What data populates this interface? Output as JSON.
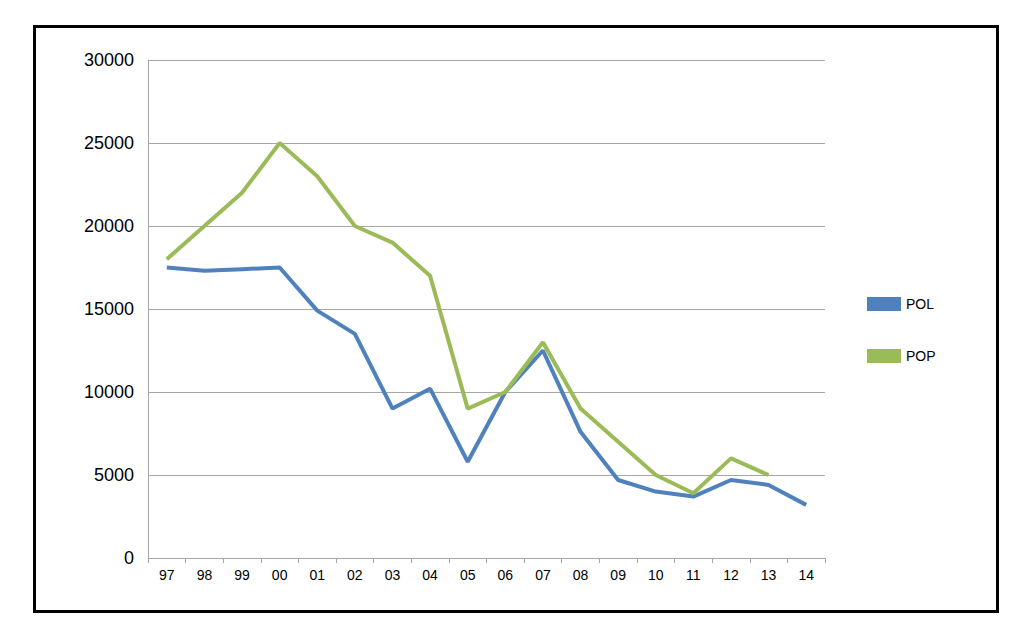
{
  "chart_data": {
    "type": "line",
    "categories": [
      "97",
      "98",
      "99",
      "00",
      "01",
      "02",
      "03",
      "04",
      "05",
      "06",
      "07",
      "08",
      "09",
      "10",
      "11",
      "12",
      "13",
      "14"
    ],
    "series": [
      {
        "name": "POL",
        "color": "#4F81BD",
        "values": [
          17500,
          17300,
          17400,
          17500,
          14900,
          13500,
          9000,
          10200,
          5800,
          10000,
          12500,
          7600,
          4700,
          4000,
          3700,
          4700,
          4400,
          3200
        ]
      },
      {
        "name": "POP",
        "color": "#9BBB59",
        "values": [
          18000,
          20000,
          22000,
          25000,
          23000,
          20000,
          19000,
          17000,
          9000,
          10000,
          13000,
          9000,
          7000,
          5000,
          3900,
          6000,
          5000,
          null
        ]
      }
    ],
    "ylim": [
      0,
      30000
    ],
    "yticks": [
      0,
      5000,
      10000,
      15000,
      20000,
      25000,
      30000
    ],
    "grid": true,
    "legend": "right"
  }
}
